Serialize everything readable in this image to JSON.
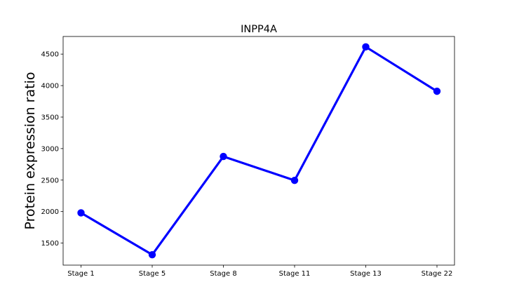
{
  "chart_data": {
    "type": "line",
    "title": "INPP4A",
    "xlabel": "",
    "ylabel": "Protein expression ratio",
    "categories": [
      "Stage 1",
      "Stage 5",
      "Stage 8",
      "Stage 11",
      "Stage 13",
      "Stage 22"
    ],
    "series": [
      {
        "values": [
          1980,
          1315,
          2875,
          2495,
          4615,
          3910
        ],
        "color": "#0000ff"
      }
    ],
    "ylim": [
      1150,
      4780
    ],
    "yticks": [
      1500,
      2000,
      2500,
      3000,
      3500,
      4000,
      4500
    ],
    "ytick_labels": [
      "1500",
      "2000",
      "2500",
      "3000",
      "3500",
      "4000",
      "4500"
    ],
    "grid": false,
    "marker": "circle"
  }
}
